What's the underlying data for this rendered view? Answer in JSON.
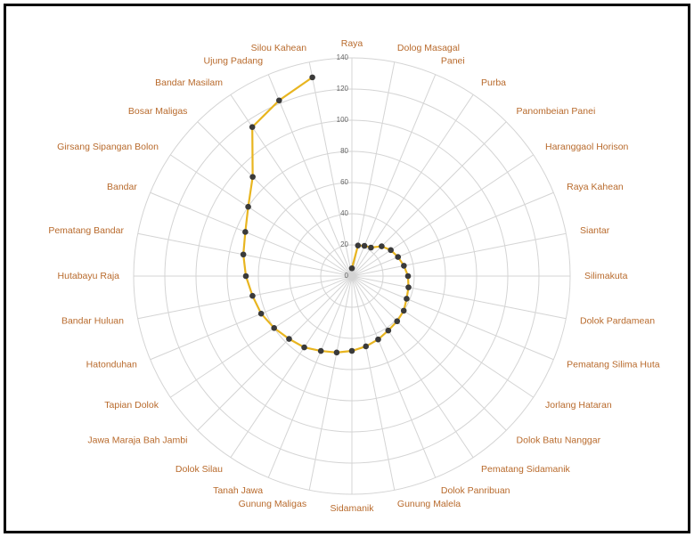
{
  "chart_data": {
    "type": "radar",
    "categories": [
      "Raya",
      "Dolog Masagal",
      "Panei",
      "Purba",
      "Panombeian Panei",
      "Haranggaol Horison",
      "Raya Kahean",
      "Siantar",
      "Silimakuta",
      "Dolok Pardamean",
      "Pematang Silima Huta",
      "Jorlang Hataran",
      "Dolok Batu Nanggar",
      "Pematang Sidamanik",
      "Dolok Panribuan",
      "Gunung Malela",
      "Sidamanik",
      "Gunung Maligas",
      "Tanah Jawa",
      "Dolok Silau",
      "Jawa Maraja Bah Jambi",
      "Tapian Dolok",
      "Hatonduhan",
      "Bandar Huluan",
      "Hutabayu Raja",
      "Pematang Bandar",
      "Bandar",
      "Girsang Sipangan Bolon",
      "Bosar Maligas",
      "Bandar Masilam",
      "Ujung Padang",
      "Silou Kahean"
    ],
    "series": [
      {
        "color": "#e8b520",
        "marker_color": "#3a3a3a",
        "values": [
          5,
          20,
          21,
          22,
          27,
          30,
          32,
          34,
          36,
          37,
          38,
          40,
          41,
          42,
          44,
          46,
          48,
          50,
          52,
          55,
          57,
          60,
          63,
          65,
          68,
          71,
          74,
          80,
          90,
          115,
          122,
          130
        ]
      }
    ],
    "rlim": [
      0,
      140
    ],
    "rticks": [
      0,
      20,
      40,
      60,
      80,
      100,
      120,
      140
    ],
    "grid": true
  }
}
